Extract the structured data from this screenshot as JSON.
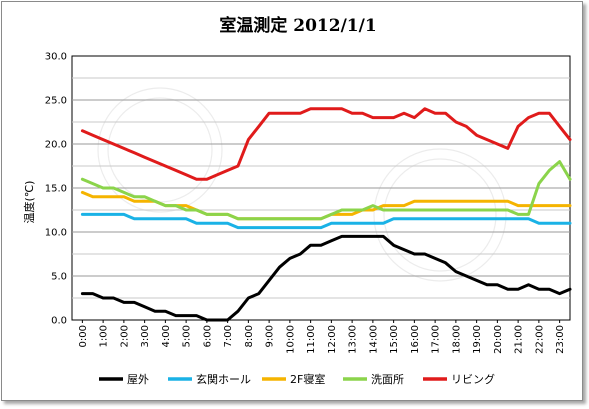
{
  "chart_data": {
    "type": "line",
    "title": "室温測定 2012/1/1",
    "ylabel": "温度(℃)",
    "xlabel": "",
    "ylim": [
      0,
      30
    ],
    "yticks": [
      "0.0",
      "5.0",
      "10.0",
      "15.0",
      "20.0",
      "25.0",
      "30.0"
    ],
    "xticks": [
      "0:00",
      "1:00",
      "2:00",
      "3:00",
      "4:00",
      "5:00",
      "6:00",
      "7:00",
      "8:00",
      "9:00",
      "10:00",
      "11:00",
      "12:00",
      "13:00",
      "14:00",
      "15:00",
      "16:00",
      "17:00",
      "18:00",
      "19:00",
      "20:00",
      "21:00",
      "22:00",
      "23:00"
    ],
    "grid": true,
    "legend_position": "bottom",
    "x": [
      0,
      0.5,
      1,
      1.5,
      2,
      2.5,
      3,
      3.5,
      4,
      4.5,
      5,
      5.5,
      6,
      6.5,
      7,
      7.5,
      8,
      8.5,
      9,
      9.5,
      10,
      10.5,
      11,
      11.5,
      12,
      12.5,
      13,
      13.5,
      14,
      14.5,
      15,
      15.5,
      16,
      16.5,
      17,
      17.5,
      18,
      18.5,
      19,
      19.5,
      20,
      20.5,
      21,
      21.5,
      22,
      22.5,
      23,
      23.5
    ],
    "series": [
      {
        "name": "屋外",
        "color": "#000000",
        "values": [
          3.0,
          3.0,
          2.5,
          2.5,
          2.0,
          2.0,
          1.5,
          1.0,
          1.0,
          0.5,
          0.5,
          0.5,
          0.0,
          0.0,
          0.0,
          1.0,
          2.5,
          3.0,
          4.5,
          6.0,
          7.0,
          7.5,
          8.5,
          8.5,
          9.0,
          9.5,
          9.5,
          9.5,
          9.5,
          9.5,
          8.5,
          8.0,
          7.5,
          7.5,
          7.0,
          6.5,
          5.5,
          5.0,
          4.5,
          4.0,
          4.0,
          3.5,
          3.5,
          4.0,
          3.5,
          3.5,
          3.0,
          3.5
        ]
      },
      {
        "name": "玄関ホール",
        "color": "#1ab2e6",
        "values": [
          12.0,
          12.0,
          12.0,
          12.0,
          12.0,
          11.5,
          11.5,
          11.5,
          11.5,
          11.5,
          11.5,
          11.0,
          11.0,
          11.0,
          11.0,
          10.5,
          10.5,
          10.5,
          10.5,
          10.5,
          10.5,
          10.5,
          10.5,
          10.5,
          11.0,
          11.0,
          11.0,
          11.0,
          11.0,
          11.0,
          11.5,
          11.5,
          11.5,
          11.5,
          11.5,
          11.5,
          11.5,
          11.5,
          11.5,
          11.5,
          11.5,
          11.5,
          11.5,
          11.5,
          11.0,
          11.0,
          11.0,
          11.0
        ]
      },
      {
        "name": "2F寝室",
        "color": "#f5b400",
        "values": [
          14.5,
          14.0,
          14.0,
          14.0,
          14.0,
          13.5,
          13.5,
          13.5,
          13.0,
          13.0,
          13.0,
          12.5,
          12.0,
          12.0,
          12.0,
          11.5,
          11.5,
          11.5,
          11.5,
          11.5,
          11.5,
          11.5,
          11.5,
          11.5,
          12.0,
          12.0,
          12.0,
          12.5,
          12.5,
          13.0,
          13.0,
          13.0,
          13.5,
          13.5,
          13.5,
          13.5,
          13.5,
          13.5,
          13.5,
          13.5,
          13.5,
          13.5,
          13.0,
          13.0,
          13.0,
          13.0,
          13.0,
          13.0
        ]
      },
      {
        "name": "洗面所",
        "color": "#8bd44b",
        "values": [
          16.0,
          15.5,
          15.0,
          15.0,
          14.5,
          14.0,
          14.0,
          13.5,
          13.0,
          13.0,
          12.5,
          12.5,
          12.0,
          12.0,
          12.0,
          11.5,
          11.5,
          11.5,
          11.5,
          11.5,
          11.5,
          11.5,
          11.5,
          11.5,
          12.0,
          12.5,
          12.5,
          12.5,
          13.0,
          12.5,
          12.5,
          12.5,
          12.5,
          12.5,
          12.5,
          12.5,
          12.5,
          12.5,
          12.5,
          12.5,
          12.5,
          12.5,
          12.0,
          12.0,
          15.5,
          17.0,
          18.0,
          16.0
        ]
      },
      {
        "name": "リビング",
        "color": "#e01b1b",
        "values": [
          21.5,
          21.0,
          20.5,
          20.0,
          19.5,
          19.0,
          18.5,
          18.0,
          17.5,
          17.0,
          16.5,
          16.0,
          16.0,
          16.5,
          17.0,
          17.5,
          20.5,
          22.0,
          23.5,
          23.5,
          23.5,
          23.5,
          24.0,
          24.0,
          24.0,
          24.0,
          23.5,
          23.5,
          23.0,
          23.0,
          23.0,
          23.5,
          23.0,
          24.0,
          23.5,
          23.5,
          22.5,
          22.0,
          21.0,
          20.5,
          20.0,
          19.5,
          22.0,
          23.0,
          23.5,
          23.5,
          22.0,
          20.5
        ]
      }
    ]
  }
}
